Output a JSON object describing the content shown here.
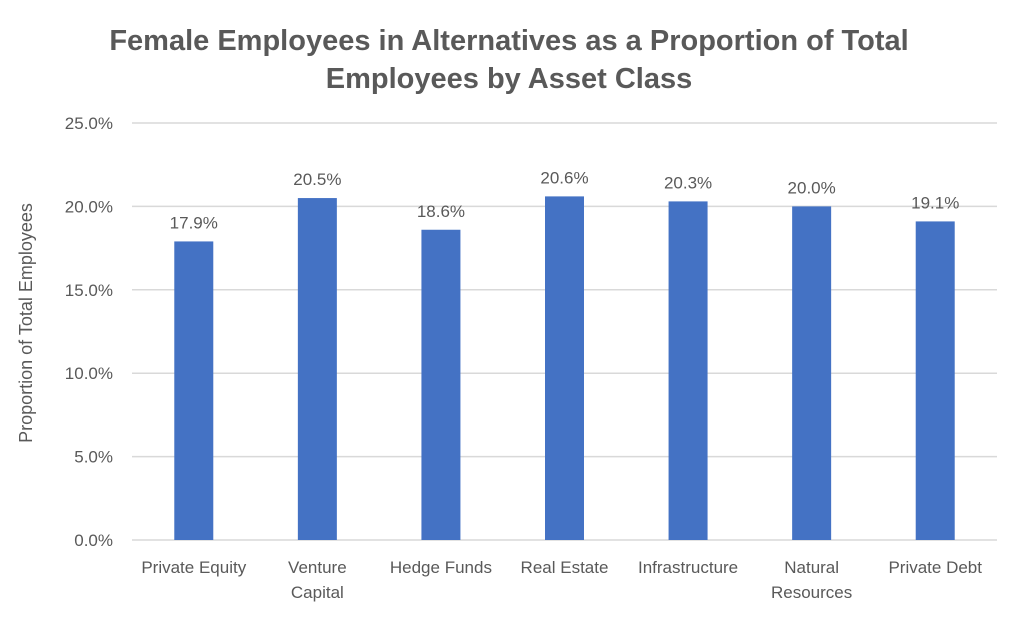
{
  "chart_data": {
    "type": "bar",
    "title_lines": [
      "Female Employees in Alternatives as a Proportion of Total",
      "Employees by Asset Class"
    ],
    "ylabel": "Proportion of Total Employees",
    "xlabel": "",
    "ylim": [
      0,
      25
    ],
    "y_ticks": [
      "0.0%",
      "5.0%",
      "10.0%",
      "15.0%",
      "20.0%",
      "25.0%"
    ],
    "categories": [
      [
        "Private Equity"
      ],
      [
        "Venture",
        "Capital"
      ],
      [
        "Hedge Funds"
      ],
      [
        "Real Estate"
      ],
      [
        "Infrastructure"
      ],
      [
        "Natural",
        "Resources"
      ],
      [
        "Private Debt"
      ]
    ],
    "values": [
      17.9,
      20.5,
      18.6,
      20.6,
      20.3,
      20.0,
      19.1
    ],
    "data_labels": [
      "17.9%",
      "20.5%",
      "18.6%",
      "20.6%",
      "20.3%",
      "20.0%",
      "19.1%"
    ],
    "bar_color": "#4472c4",
    "grid": true,
    "legend": "none"
  }
}
